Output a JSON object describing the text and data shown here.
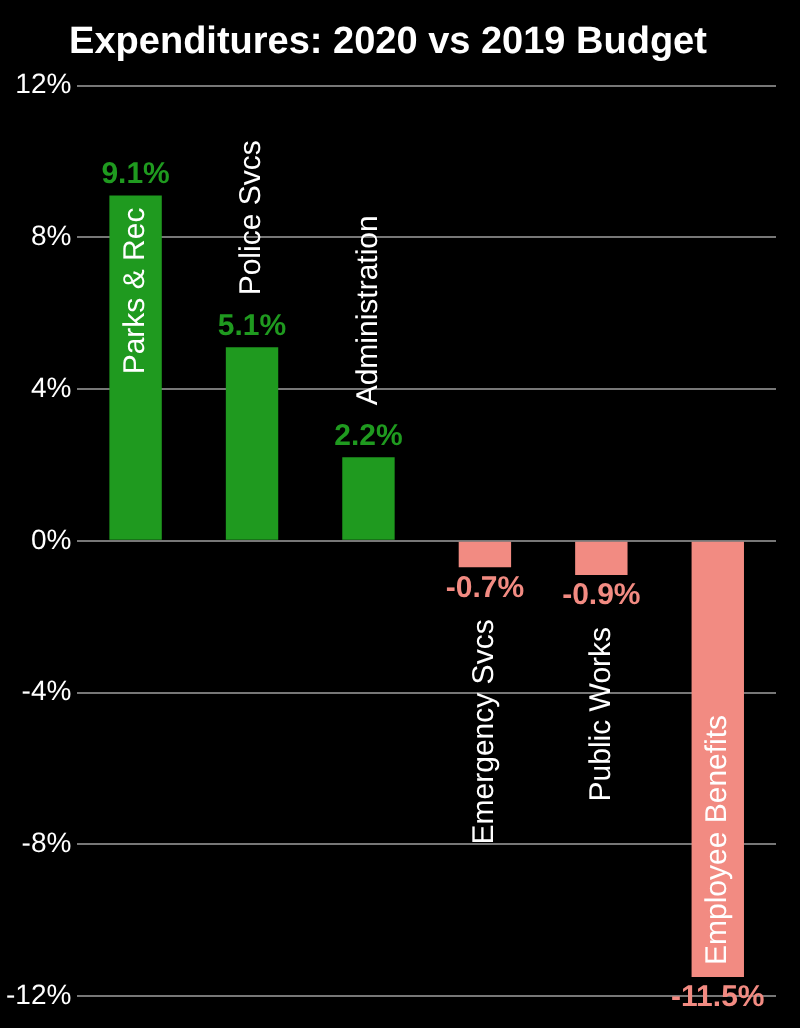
{
  "chart_data": {
    "type": "bar",
    "title": "Expenditures: 2020 vs 2019 Budget",
    "categories": [
      "Parks & Rec",
      "Police Svcs",
      "Administration",
      "Emergency Svcs",
      "Public Works",
      "Employee Benefits"
    ],
    "values": [
      9.1,
      5.1,
      2.2,
      -0.7,
      -0.9,
      -11.5
    ],
    "colors": [
      "#1f9a1f",
      "#1f9a1f",
      "#1f9a1f",
      "#f28b82",
      "#f28b82",
      "#f28b82"
    ],
    "value_labels": [
      "9.1%",
      "5.1%",
      "2.2%",
      "-0.7%",
      "-0.9%",
      "-11.5%"
    ],
    "ylim": [
      -12,
      12
    ],
    "yticks": [
      {
        "value": -12,
        "label": "-12%"
      },
      {
        "value": -8,
        "label": "-8%"
      },
      {
        "value": -4,
        "label": "-4%"
      },
      {
        "value": 0,
        "label": "0%"
      },
      {
        "value": 4,
        "label": "4%"
      },
      {
        "value": 8,
        "label": "8%"
      },
      {
        "value": 12,
        "label": "12%"
      }
    ],
    "grid": "y"
  }
}
